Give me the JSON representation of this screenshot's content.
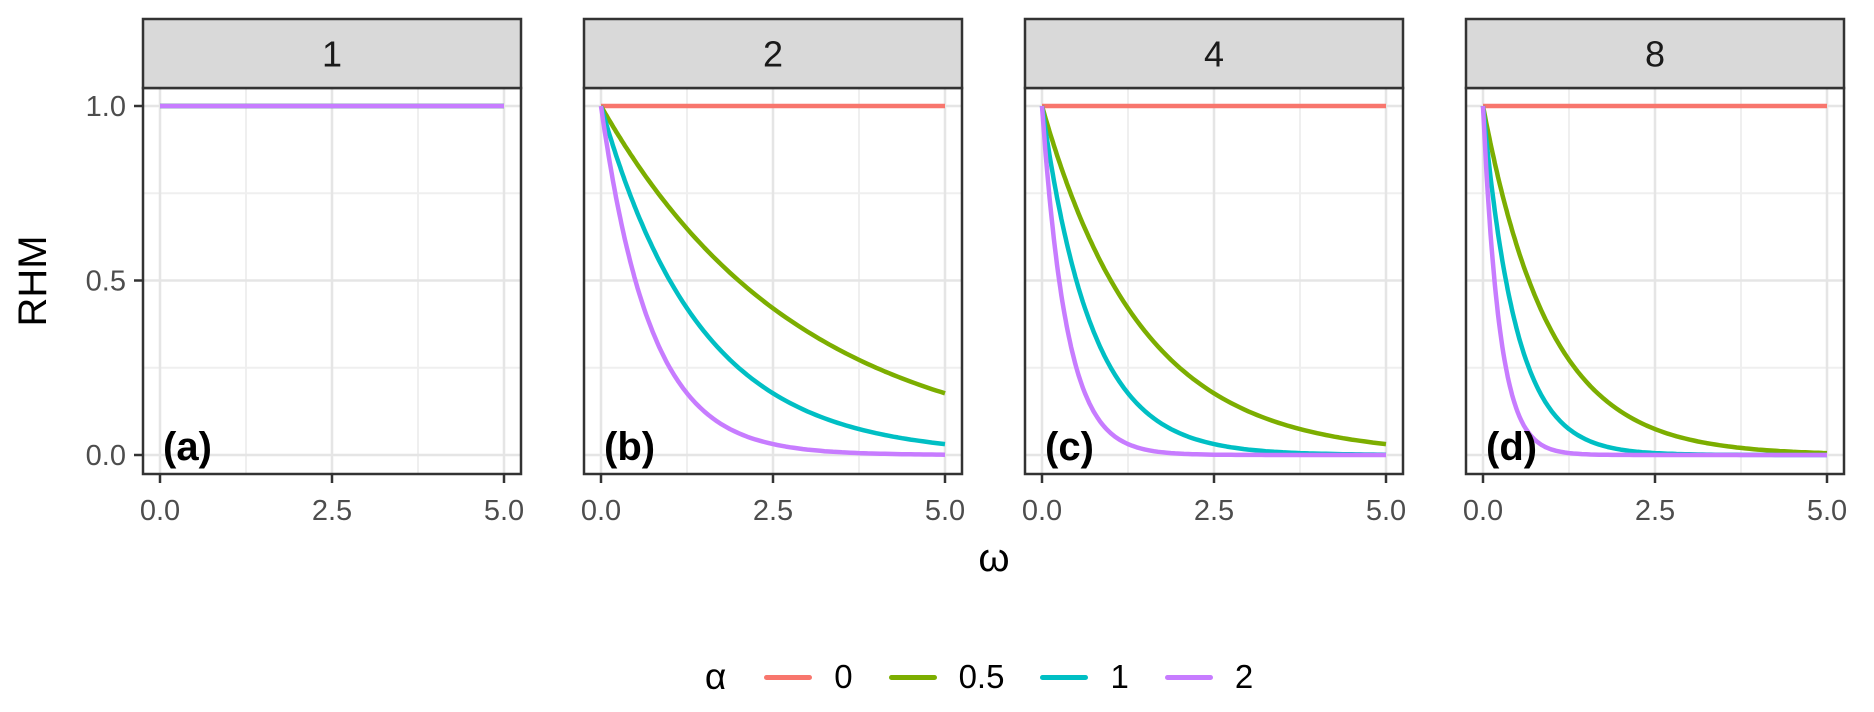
{
  "figure": {
    "y_axis_title": "RHM",
    "x_axis_title": "ω",
    "legend_title": "α"
  },
  "chart_data": {
    "type": "line",
    "title": "",
    "xlabel": "ω",
    "ylabel": "RHM",
    "xlim": [
      0,
      5
    ],
    "ylim": [
      0,
      1
    ],
    "x_ticks": [
      0,
      2.5,
      5
    ],
    "x_tick_labels": [
      "0.0",
      "2.5",
      "5.0"
    ],
    "x_minor_breaks": [
      1.25,
      3.75
    ],
    "y_ticks": [
      0,
      0.5,
      1
    ],
    "y_tick_labels": [
      "0.0",
      "0.5",
      "1.0"
    ],
    "y_minor_breaks": [
      0.25,
      0.75
    ],
    "grid": true,
    "facet_labels": [
      "1",
      "2",
      "4",
      "8"
    ],
    "legend": {
      "title": "α",
      "position": "bottom",
      "entries": [
        {
          "label": "0",
          "color": "#F8766D"
        },
        {
          "label": "0.5",
          "color": "#7CAE00"
        },
        {
          "label": "1",
          "color": "#00BFC4"
        },
        {
          "label": "2",
          "color": "#C77CFF"
        }
      ]
    },
    "x": [
      0,
      0.125,
      0.25,
      0.375,
      0.5,
      0.75,
      1,
      1.5,
      2,
      2.5,
      3,
      3.5,
      4,
      4.5,
      5
    ],
    "panels": [
      {
        "facet": "1",
        "tag": "(a)",
        "series": [
          {
            "alpha": "0",
            "color": "#F8766D",
            "y": [
              1,
              1,
              1,
              1,
              1,
              1,
              1,
              1,
              1,
              1,
              1,
              1,
              1,
              1,
              1
            ]
          },
          {
            "alpha": "0.5",
            "color": "#7CAE00",
            "y": [
              1,
              1,
              1,
              1,
              1,
              1,
              1,
              1,
              1,
              1,
              1,
              1,
              1,
              1,
              1
            ]
          },
          {
            "alpha": "1",
            "color": "#00BFC4",
            "y": [
              1,
              1,
              1,
              1,
              1,
              1,
              1,
              1,
              1,
              1,
              1,
              1,
              1,
              1,
              1
            ]
          },
          {
            "alpha": "2",
            "color": "#C77CFF",
            "y": [
              1,
              1,
              1,
              1,
              1,
              1,
              1,
              1,
              1,
              1,
              1,
              1,
              1,
              1,
              1
            ]
          }
        ]
      },
      {
        "facet": "2",
        "tag": "(b)",
        "series": [
          {
            "alpha": "0",
            "color": "#F8766D",
            "y": [
              1,
              1,
              1,
              1,
              1,
              1,
              1,
              1,
              1,
              1,
              1,
              1,
              1,
              1,
              1
            ]
          },
          {
            "alpha": "0.5",
            "color": "#7CAE00",
            "y": [
              1,
              0.9576,
              0.917,
              0.8781,
              0.8409,
              0.7711,
              0.7071,
              0.5946,
              0.5,
              0.4204,
              0.3536,
              0.2973,
              0.25,
              0.2102,
              0.1768
            ]
          },
          {
            "alpha": "1",
            "color": "#00BFC4",
            "y": [
              1,
              0.917,
              0.8409,
              0.7711,
              0.7071,
              0.5946,
              0.5,
              0.3536,
              0.25,
              0.1768,
              0.125,
              0.0884,
              0.0625,
              0.0442,
              0.0313
            ]
          },
          {
            "alpha": "2",
            "color": "#C77CFF",
            "y": [
              1,
              0.8409,
              0.7071,
              0.5946,
              0.5,
              0.3536,
              0.25,
              0.125,
              0.0625,
              0.0313,
              0.0156,
              0.0078,
              0.0039,
              0.002,
              0.001
            ]
          }
        ]
      },
      {
        "facet": "4",
        "tag": "(c)",
        "series": [
          {
            "alpha": "0",
            "color": "#F8766D",
            "y": [
              1,
              1,
              1,
              1,
              1,
              1,
              1,
              1,
              1,
              1,
              1,
              1,
              1,
              1,
              1
            ]
          },
          {
            "alpha": "0.5",
            "color": "#7CAE00",
            "y": [
              1,
              0.917,
              0.8409,
              0.7711,
              0.7071,
              0.5946,
              0.5,
              0.3536,
              0.25,
              0.1768,
              0.125,
              0.0884,
              0.0625,
              0.0442,
              0.0313
            ]
          },
          {
            "alpha": "1",
            "color": "#00BFC4",
            "y": [
              1,
              0.8409,
              0.7071,
              0.5946,
              0.5,
              0.3536,
              0.25,
              0.125,
              0.0625,
              0.0313,
              0.0156,
              0.0078,
              0.0039,
              0.002,
              0.001
            ]
          },
          {
            "alpha": "2",
            "color": "#C77CFF",
            "y": [
              1,
              0.7071,
              0.5,
              0.3536,
              0.25,
              0.125,
              0.0625,
              0.0156,
              0.0039,
              0.001,
              0.0002,
              0.0001,
              0,
              0,
              0
            ]
          }
        ]
      },
      {
        "facet": "8",
        "tag": "(d)",
        "series": [
          {
            "alpha": "0",
            "color": "#F8766D",
            "y": [
              1,
              1,
              1,
              1,
              1,
              1,
              1,
              1,
              1,
              1,
              1,
              1,
              1,
              1,
              1
            ]
          },
          {
            "alpha": "0.5",
            "color": "#7CAE00",
            "y": [
              1,
              0.8781,
              0.7711,
              0.6771,
              0.5946,
              0.4585,
              0.3536,
              0.2102,
              0.125,
              0.0743,
              0.0442,
              0.0263,
              0.0156,
              0.0093,
              0.0055
            ]
          },
          {
            "alpha": "1",
            "color": "#00BFC4",
            "y": [
              1,
              0.7711,
              0.5946,
              0.4585,
              0.3536,
              0.2102,
              0.125,
              0.0442,
              0.0156,
              0.0055,
              0.002,
              0.0007,
              0.0002,
              0.0001,
              0
            ]
          },
          {
            "alpha": "2",
            "color": "#C77CFF",
            "y": [
              1,
              0.5946,
              0.3536,
              0.2102,
              0.125,
              0.0442,
              0.0156,
              0.002,
              0.0002,
              0,
              0,
              0,
              0,
              0,
              0
            ]
          }
        ]
      }
    ],
    "style": {
      "strip_background": "#D9D9D9",
      "panel_background": "#FFFFFF",
      "panel_border": "#333333",
      "grid_major": "#E5E5E5",
      "grid_minor": "#EFEFEF",
      "axis_text": "#4D4D4D",
      "tick_mark": "#333333",
      "strip_text": "#1A1A1A",
      "tag_text": "#000000"
    }
  }
}
